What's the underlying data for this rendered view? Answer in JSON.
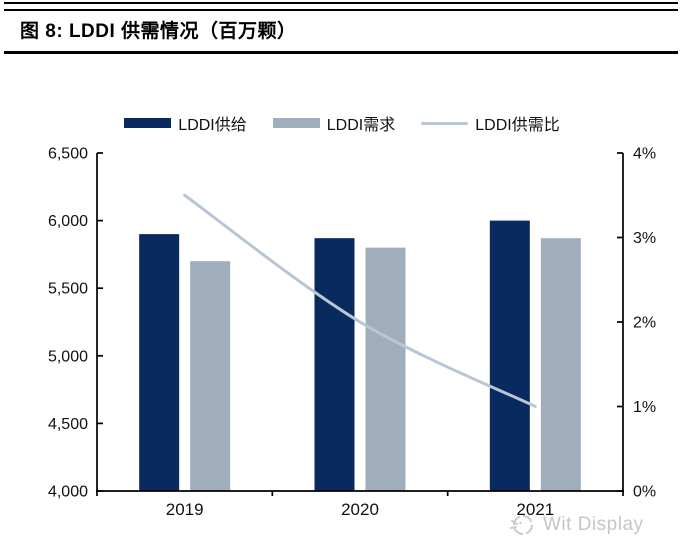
{
  "figure": {
    "title": "图 8: LDDI 供需情况（百万颗）"
  },
  "legend": [
    {
      "label": "LDDI供给",
      "type": "bar",
      "color": "#092a5e"
    },
    {
      "label": "LDDI需求",
      "type": "bar",
      "color": "#9fadbc"
    },
    {
      "label": "LDDI供需比",
      "type": "line",
      "color": "#b9c6d5"
    }
  ],
  "chart_data": {
    "type": "bar",
    "title": "图 8: LDDI 供需情况（百万颗）",
    "categories": [
      "2019",
      "2020",
      "2021"
    ],
    "series": [
      {
        "name": "LDDI供给",
        "type": "bar",
        "axis": "left",
        "color": "#092a5e",
        "values": [
          5900,
          5870,
          6000
        ]
      },
      {
        "name": "LDDI需求",
        "type": "bar",
        "axis": "left",
        "color": "#9fadbc",
        "values": [
          5700,
          5800,
          5870
        ]
      },
      {
        "name": "LDDI供需比",
        "type": "line",
        "axis": "right",
        "color": "#b9c6d5",
        "values_percent": [
          3.5,
          2.0,
          1.0
        ]
      }
    ],
    "y_left": {
      "min": 4000,
      "max": 6500,
      "step": 500,
      "tick_labels": [
        "4,000",
        "4,500",
        "5,000",
        "5,500",
        "6,000",
        "6,500"
      ]
    },
    "y_right": {
      "min": 0,
      "max": 4,
      "step": 1,
      "tick_labels": [
        "0%",
        "1%",
        "2%",
        "3%",
        "4%"
      ]
    },
    "xlabel": "",
    "ylabel": "",
    "grid": false,
    "legend_position": "top"
  },
  "watermark": {
    "text": "Wit Display"
  }
}
